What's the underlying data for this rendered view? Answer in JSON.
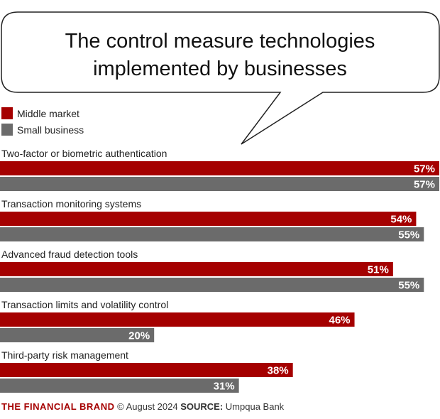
{
  "title": "The control measure technologies implemented by businesses",
  "title_lines": [
    "The control measure technologies",
    "implemented by businesses"
  ],
  "legend": [
    {
      "label": "Middle market",
      "color": "#a50000"
    },
    {
      "label": "Small business",
      "color": "#6b6b6b"
    }
  ],
  "chart_data": {
    "type": "bar",
    "orientation": "horizontal",
    "title": "The control measure technologies implemented by businesses",
    "categories": [
      "Two-factor or biometric authentication",
      "Transaction monitoring systems",
      "Advanced fraud detection tools",
      "Transaction limits and volatility control",
      "Third-party risk management"
    ],
    "series": [
      {
        "name": "Middle market",
        "values": [
          57,
          54,
          51,
          46,
          38
        ],
        "labels": [
          "57%",
          "54%",
          "51%",
          "46%",
          "38%"
        ],
        "color": "#a50000"
      },
      {
        "name": "Small business",
        "values": [
          57,
          55,
          55,
          20,
          31
        ],
        "labels": [
          "57%",
          "55%",
          "55%",
          "20%",
          "31%"
        ],
        "color": "#6b6b6b"
      }
    ],
    "xlim": [
      0,
      57
    ],
    "grid": false,
    "legend_position": "top-left"
  },
  "footer": {
    "brand": "THE FINANCIAL BRAND",
    "copyright": "© August 2024",
    "source_label": "SOURCE:",
    "source": "Umpqua Bank"
  }
}
